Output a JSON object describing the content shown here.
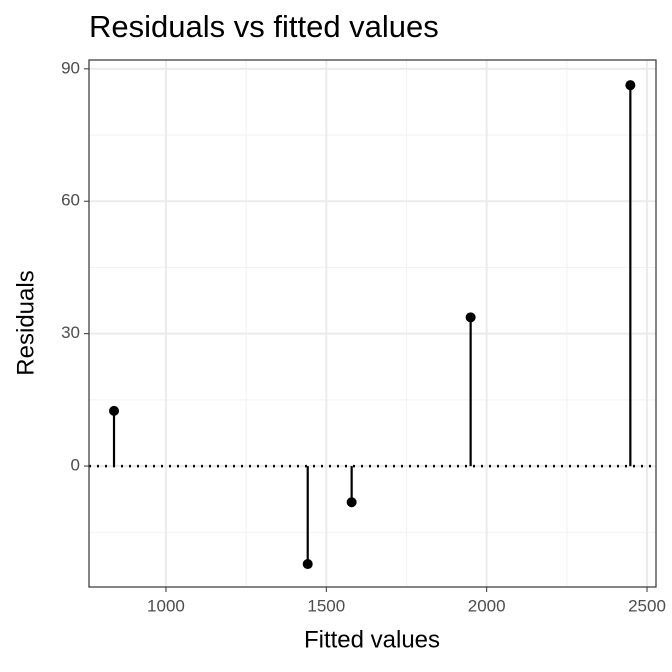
{
  "chart_data": {
    "type": "lollipop",
    "title": "Residuals vs fitted values",
    "x_label": "Fitted values",
    "y_label": "Residuals",
    "x": [
      838,
      1442,
      1579,
      1950,
      2448
    ],
    "values": [
      12.5,
      -22.2,
      -8.2,
      33.7,
      86.3
    ],
    "color": "#000000",
    "xlim": [
      760,
      2528
    ],
    "ylim": [
      -27.4,
      92
    ],
    "xticks": [
      1000,
      1500,
      2000,
      2500
    ],
    "yticks": [
      0,
      30,
      60,
      90
    ],
    "xminor": [
      1250,
      1750,
      2250
    ],
    "yminor": [
      -15,
      15,
      45,
      75
    ],
    "reference_line": 0,
    "grid": true
  }
}
